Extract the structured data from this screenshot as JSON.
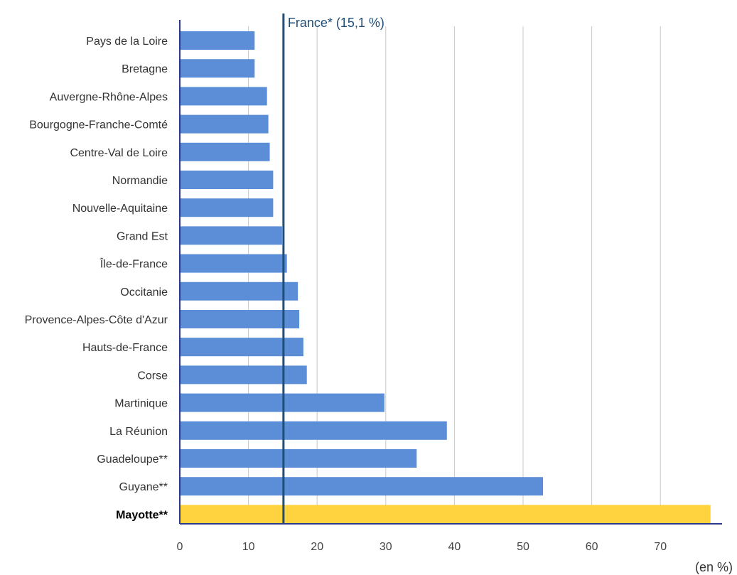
{
  "chart_data": {
    "type": "bar",
    "orientation": "horizontal",
    "categories": [
      "Pays de la Loire",
      "Bretagne",
      "Auvergne-Rhône-Alpes",
      "Bourgogne-Franche-Comté",
      "Centre-Val de Loire",
      "Normandie",
      "Nouvelle-Aquitaine",
      "Grand Est",
      "Île-de-France",
      "Occitanie",
      "Provence-Alpes-Côte d'Azur",
      "Hauts-de-France",
      "Corse",
      "Martinique",
      "La Réunion",
      "Guadeloupe**",
      "Guyane**",
      "Mayotte**"
    ],
    "values": [
      10.9,
      10.9,
      12.7,
      12.9,
      13.1,
      13.6,
      13.6,
      14.9,
      15.6,
      17.2,
      17.4,
      18.0,
      18.5,
      29.8,
      38.9,
      34.5,
      52.9,
      77.3
    ],
    "highlight_category": "Mayotte**",
    "colors": {
      "bar": "#5b8ed6",
      "highlight": "#ffd23f",
      "reference": "#1f4e79",
      "grid": "#c8c8c8",
      "axis": "#2e3a8c"
    },
    "reference_line": {
      "value": 15.1,
      "label": "France* (15,1 %)"
    },
    "xticks": [
      "0",
      "10",
      "20",
      "30",
      "40",
      "50",
      "60",
      "70"
    ],
    "xlim": [
      0,
      79
    ],
    "unit_label": "(en %)",
    "grid": true,
    "title": "",
    "xlabel": "",
    "ylabel": ""
  }
}
